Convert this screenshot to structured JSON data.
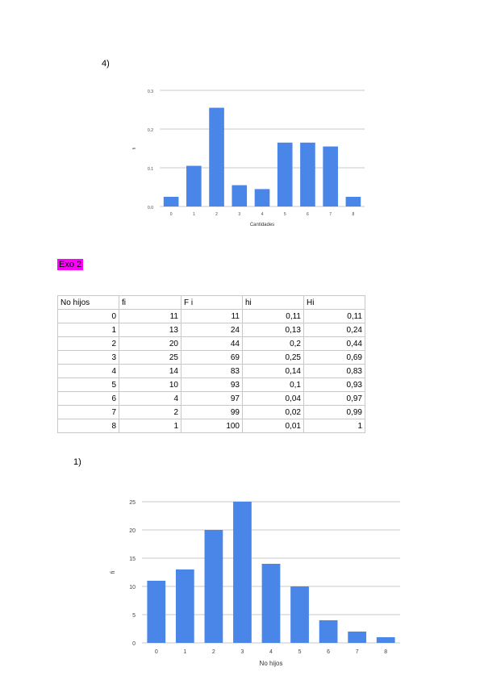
{
  "labels": {
    "section_4": "4)",
    "exo": "Exo 2",
    "section_1": "1)"
  },
  "table": {
    "headers": [
      "No hijos",
      "fi",
      "F i",
      "hi",
      "Hi"
    ],
    "rows": [
      [
        "0",
        "11",
        "11",
        "0,11",
        "0,11"
      ],
      [
        "1",
        "13",
        "24",
        "0,13",
        "0,24"
      ],
      [
        "2",
        "20",
        "44",
        "0,2",
        "0,44"
      ],
      [
        "3",
        "25",
        "69",
        "0,25",
        "0,69"
      ],
      [
        "4",
        "14",
        "83",
        "0,14",
        "0,83"
      ],
      [
        "5",
        "10",
        "93",
        "0,1",
        "0,93"
      ],
      [
        "6",
        "4",
        "97",
        "0,04",
        "0,97"
      ],
      [
        "7",
        "2",
        "99",
        "0,02",
        "0,99"
      ],
      [
        "8",
        "1",
        "100",
        "0,01",
        "1"
      ]
    ]
  },
  "chart_data": [
    {
      "type": "bar",
      "title": "",
      "xlabel": "Cantidades",
      "ylabel": "fi",
      "categories": [
        "0",
        "1",
        "2",
        "3",
        "4",
        "5",
        "6",
        "7",
        "8"
      ],
      "values": [
        0.025,
        0.105,
        0.255,
        0.055,
        0.045,
        0.165,
        0.165,
        0.155,
        0.025
      ],
      "ylim": [
        0,
        0.3
      ],
      "yticks": [
        0,
        0.1,
        0.2,
        0.3
      ],
      "ytick_labels": [
        "0.0",
        "0.1",
        "0.2",
        "0.3"
      ],
      "grid": true,
      "color": "#4a86e8"
    },
    {
      "type": "bar",
      "title": "",
      "xlabel": "No hijos",
      "ylabel": "fi",
      "categories": [
        "0",
        "1",
        "2",
        "3",
        "4",
        "5",
        "6",
        "7",
        "8"
      ],
      "values": [
        11,
        13,
        20,
        25,
        14,
        10,
        4,
        2,
        1
      ],
      "ylim": [
        0,
        25
      ],
      "yticks": [
        0,
        5,
        10,
        15,
        20,
        25
      ],
      "ytick_labels": [
        "0",
        "5",
        "10",
        "15",
        "20",
        "25"
      ],
      "grid": true,
      "color": "#4a86e8"
    }
  ]
}
